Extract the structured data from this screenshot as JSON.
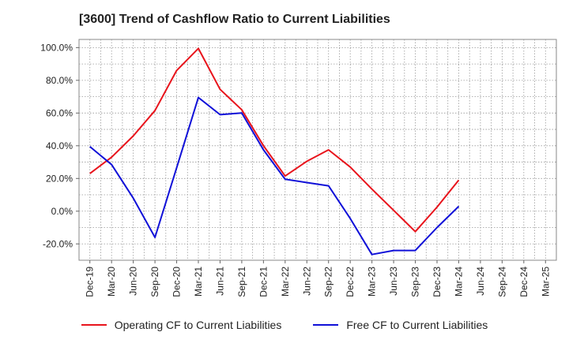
{
  "chart_data": {
    "type": "line",
    "title": "[3600]  Trend of Cashflow Ratio to Current Liabilities",
    "xlabel": "",
    "ylabel": "",
    "categories": [
      "Dec-19",
      "Mar-20",
      "Jun-20",
      "Sep-20",
      "Dec-20",
      "Mar-21",
      "Jun-21",
      "Sep-21",
      "Dec-21",
      "Mar-22",
      "Jun-22",
      "Sep-22",
      "Dec-22",
      "Mar-23",
      "Jun-23",
      "Sep-23",
      "Dec-23",
      "Mar-24",
      "Jun-24",
      "Sep-24",
      "Dec-24",
      "Mar-25"
    ],
    "y_ticks": [
      100,
      80,
      60,
      40,
      20,
      0,
      -20
    ],
    "y_tick_labels": [
      "100.0%",
      "80.0%",
      "60.0%",
      "40.0%",
      "20.0%",
      "0.0%",
      "-20.0%"
    ],
    "ylim": [
      -30,
      105
    ],
    "grid": true,
    "legend_position": "bottom",
    "series": [
      {
        "name": "Operating CF to Current Liabilities",
        "color": "#e8141c",
        "values": [
          23.0,
          33.0,
          46.0,
          61.5,
          86.0,
          99.5,
          74.5,
          62.0,
          40.0,
          21.5,
          30.5,
          37.5,
          27.0,
          13.5,
          0.5,
          -12.5,
          2.5,
          19.0,
          null,
          null,
          null,
          null
        ]
      },
      {
        "name": "Free CF to Current Liabilities",
        "color": "#1010d8",
        "values": [
          39.5,
          28.5,
          8.0,
          -16.0,
          26.5,
          69.5,
          59.0,
          60.0,
          37.5,
          19.5,
          17.5,
          15.5,
          -4.5,
          -26.5,
          -24.0,
          -24.0,
          -10.0,
          3.0,
          null,
          null,
          null,
          null
        ]
      }
    ]
  }
}
